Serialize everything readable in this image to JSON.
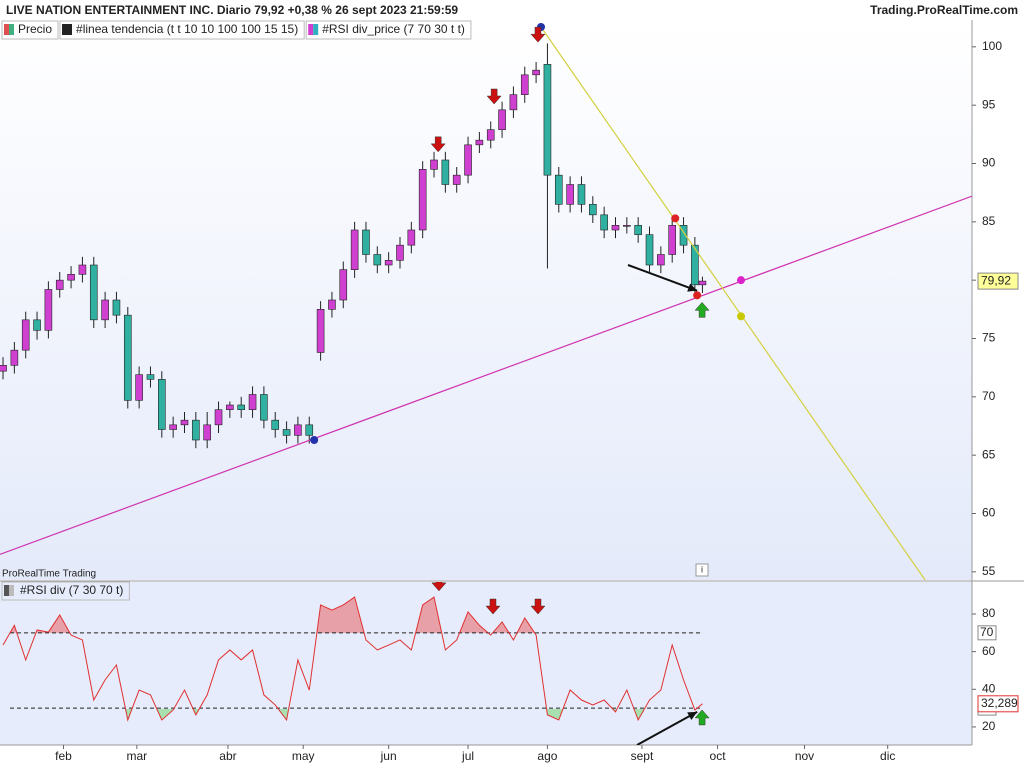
{
  "chart_data": [
    {
      "type": "candlestick",
      "title": "LIVE NATION ENTERTAINMENT INC. Diario 79,92 +0,38 % 26 sept 2023 21:59:59",
      "source": "Trading.ProRealTime.com",
      "legend": [
        {
          "label": "Precio",
          "colors": [
            "#e05050",
            "#40b080"
          ]
        },
        {
          "label": "#linea tendencia (t t 10 10 100 100 15 15)",
          "colors": [
            "#222222",
            "#222222"
          ]
        },
        {
          "label": "#RSI div_price (7 70 30 t t)",
          "colors": [
            "#d040d0",
            "#30b0c0"
          ]
        }
      ],
      "up_color": "#d040d0",
      "down_color": "#30b0a0",
      "xlim": [
        -0.8,
        256.3
      ],
      "ylim": [
        54.3,
        102.3
      ],
      "yticks": [
        55,
        60,
        65,
        70,
        75,
        80,
        85,
        90,
        95,
        100
      ],
      "grid": false,
      "x": [
        0,
        3,
        6,
        9,
        12,
        15,
        18,
        21,
        24,
        27,
        30,
        33,
        36,
        39,
        42,
        45,
        48,
        51,
        54,
        57,
        60,
        63,
        66,
        69,
        72,
        75,
        78,
        81,
        84,
        87,
        90,
        93,
        96,
        99,
        102,
        105,
        108,
        111,
        114,
        117,
        120,
        123,
        126,
        129,
        132,
        135,
        138,
        141,
        144,
        147,
        150,
        153,
        156,
        159,
        162,
        165,
        168,
        171,
        174,
        177,
        180,
        183,
        185
      ],
      "open": [
        72.2,
        72.7,
        74,
        76.6,
        75.7,
        79.2,
        80,
        80.5,
        81.3,
        76.6,
        78.3,
        77,
        69.7,
        71.9,
        71.5,
        67.2,
        67.6,
        68,
        66.3,
        67.6,
        68.9,
        69.3,
        68.9,
        70.2,
        68,
        67.2,
        66.7,
        67.6,
        73.8,
        77.5,
        78.3,
        80.9,
        84.3,
        82.2,
        81.3,
        81.7,
        83,
        84.3,
        89.5,
        90.3,
        88.2,
        89,
        91.6,
        92,
        92.9,
        94.6,
        95.9,
        97.6,
        98.5,
        89,
        86.5,
        88.2,
        86.5,
        85.6,
        84.3,
        84.7,
        84.7,
        83.9,
        81.3,
        82.2,
        84.7,
        83,
        79.6
      ],
      "high": [
        73.4,
        74.7,
        77.3,
        77.3,
        79.9,
        80.7,
        81.2,
        82,
        82,
        79,
        79,
        77.7,
        72.6,
        72.6,
        72.2,
        68.3,
        68.7,
        68.7,
        68.7,
        69.6,
        69.6,
        70,
        70.9,
        70.9,
        68.7,
        67.9,
        68.3,
        68.3,
        78.2,
        79,
        81.6,
        85,
        85,
        82.9,
        82.4,
        83.7,
        85,
        90.2,
        91,
        91,
        89.7,
        92.3,
        92.7,
        93.6,
        95.3,
        96.6,
        98.3,
        98.7,
        100.3,
        89.7,
        88.9,
        88.9,
        87.2,
        86.3,
        85.4,
        85.4,
        85.4,
        84.6,
        82.9,
        85.4,
        85.4,
        83.7,
        80.3
      ],
      "low": [
        71.5,
        72,
        73.3,
        74.9,
        75,
        78.5,
        79.3,
        79.8,
        75.9,
        75.9,
        76.3,
        69,
        69,
        70.8,
        66.5,
        66.5,
        66.9,
        65.6,
        65.6,
        66.9,
        68.2,
        68.2,
        68.2,
        67.3,
        66.5,
        66,
        66,
        66,
        73.1,
        76.8,
        77.6,
        80.2,
        81.5,
        80.6,
        80.6,
        81,
        82.3,
        83.6,
        88.8,
        87.5,
        87.5,
        88.3,
        90.9,
        91.3,
        92.2,
        93.9,
        95.2,
        96.9,
        81,
        85.8,
        85.8,
        85.8,
        84.9,
        83.6,
        83.6,
        84,
        83.2,
        80.6,
        80.6,
        81.5,
        82.3,
        78.9,
        78.9
      ],
      "close": [
        72.7,
        74,
        76.6,
        75.7,
        79.2,
        80,
        80.5,
        81.3,
        76.6,
        78.3,
        77,
        69.7,
        71.9,
        71.5,
        67.2,
        67.6,
        68,
        66.3,
        67.6,
        68.9,
        69.3,
        68.9,
        70.2,
        68,
        67.2,
        66.7,
        67.6,
        66.7,
        77.5,
        78.3,
        80.9,
        84.3,
        82.2,
        81.3,
        81.7,
        83,
        84.3,
        89.5,
        90.3,
        88.2,
        89,
        91.6,
        92,
        92.9,
        94.6,
        95.9,
        97.6,
        98,
        89,
        86.5,
        88.2,
        86.5,
        85.6,
        84.3,
        84.7,
        84.7,
        83.9,
        81.3,
        82.2,
        84.7,
        83,
        79.6,
        79.92
      ],
      "last_value": 79.92,
      "last_value_label": "79,92",
      "lines": [
        {
          "color": "#d030b0",
          "points": [
            [
              -0.8,
              56.5
            ],
            [
              256.3,
              87.2
            ]
          ]
        },
        {
          "color": "#d4d040",
          "points": [
            [
              142.3,
              101.7
            ],
            [
              243.9,
              54.3
            ]
          ]
        }
      ],
      "dots": [
        {
          "x": 142.3,
          "y": 101.7,
          "color": "#2233aa"
        },
        {
          "x": 82.3,
          "y": 66.3,
          "color": "#2233aa"
        },
        {
          "x": 177.8,
          "y": 85.3,
          "color": "#dd2222"
        },
        {
          "x": 195.2,
          "y": 80,
          "color": "#dd22cc"
        },
        {
          "x": 195.2,
          "y": 76.9,
          "color": "#c8c800"
        },
        {
          "x": 183.6,
          "y": 78.7,
          "color": "#dd2222"
        }
      ],
      "signals": [
        {
          "x": 115.1,
          "y": 91.6,
          "dir": "down",
          "color": "#cc1111"
        },
        {
          "x": 129.9,
          "y": 95.7,
          "dir": "down",
          "color": "#cc1111"
        },
        {
          "x": 141.5,
          "y": 101,
          "dir": "down",
          "color": "#cc1111"
        },
        {
          "x": 184.9,
          "y": 77.5,
          "dir": "up",
          "color": "#22aa22"
        }
      ],
      "arrows": [
        {
          "from": [
            165.3,
            81.3
          ],
          "to": [
            183.6,
            79.1
          ]
        }
      ]
    },
    {
      "type": "line",
      "title": "#RSI div (7 30 70 t)",
      "platform_label": "ProRealTime Trading",
      "color": "#e03030",
      "overbought_color": "#e8a0a8",
      "oversold_color": "#a8e0b0",
      "xlim": [
        -0.8,
        256.3
      ],
      "ylim": [
        10.4,
        97
      ],
      "yticks": [
        20,
        40,
        60,
        80
      ],
      "levels": [
        70,
        30
      ],
      "grid": false,
      "xticks": [
        {
          "value": 16,
          "label": "feb"
        },
        {
          "value": 35.4,
          "label": "mar"
        },
        {
          "value": 59.5,
          "label": "abr"
        },
        {
          "value": 79.4,
          "label": "may"
        },
        {
          "value": 102,
          "label": "jun"
        },
        {
          "value": 123,
          "label": "jul"
        },
        {
          "value": 144,
          "label": "ago"
        },
        {
          "value": 169,
          "label": "sept"
        },
        {
          "value": 189,
          "label": "oct"
        },
        {
          "value": 212,
          "label": "nov"
        },
        {
          "value": 234,
          "label": "dic"
        }
      ],
      "x": [
        0,
        3,
        6,
        9,
        12,
        15,
        18,
        21,
        24,
        27,
        30,
        33,
        36,
        39,
        42,
        45,
        48,
        51,
        54,
        57,
        60,
        63,
        66,
        69,
        72,
        75,
        78,
        81,
        84,
        87,
        90,
        93,
        96,
        99,
        102,
        105,
        108,
        111,
        114,
        117,
        120,
        123,
        126,
        129,
        132,
        135,
        138,
        141,
        144,
        147,
        150,
        153,
        156,
        159,
        162,
        165,
        168,
        171,
        174,
        177,
        180,
        183,
        185
      ],
      "values": [
        63.5,
        74,
        55.6,
        71.5,
        70.4,
        79.5,
        68.8,
        66.2,
        34.3,
        45,
        52.9,
        23.7,
        39.6,
        37,
        23.7,
        29,
        39.6,
        26.4,
        37,
        55.6,
        60.9,
        55.6,
        60.9,
        37,
        31.7,
        23.7,
        55.6,
        39.6,
        84.8,
        82.1,
        84.8,
        89,
        66.2,
        60.9,
        63.5,
        66.2,
        60.9,
        84.8,
        89,
        60.9,
        66.2,
        81.1,
        74,
        68.8,
        75.8,
        66.2,
        77.9,
        68.8,
        26.4,
        23.7,
        39.6,
        34.3,
        31.7,
        34.3,
        28,
        39.6,
        23.7,
        34.3,
        39.6,
        63.5,
        45,
        29,
        32.289
      ],
      "last_value": 32.289,
      "last_value_label": "32,289",
      "signals": [
        {
          "x": 115.3,
          "y": 96,
          "dir": "down",
          "color": "#cc1111"
        },
        {
          "x": 129.6,
          "y": 83.7,
          "dir": "down",
          "color": "#cc1111"
        },
        {
          "x": 141.5,
          "y": 83.7,
          "dir": "down",
          "color": "#cc1111"
        },
        {
          "x": 184.9,
          "y": 25.3,
          "dir": "up",
          "color": "#22aa22"
        }
      ],
      "arrows": [
        {
          "from": [
            167.7,
            10.4
          ],
          "to": [
            183.6,
            28
          ]
        }
      ]
    }
  ]
}
